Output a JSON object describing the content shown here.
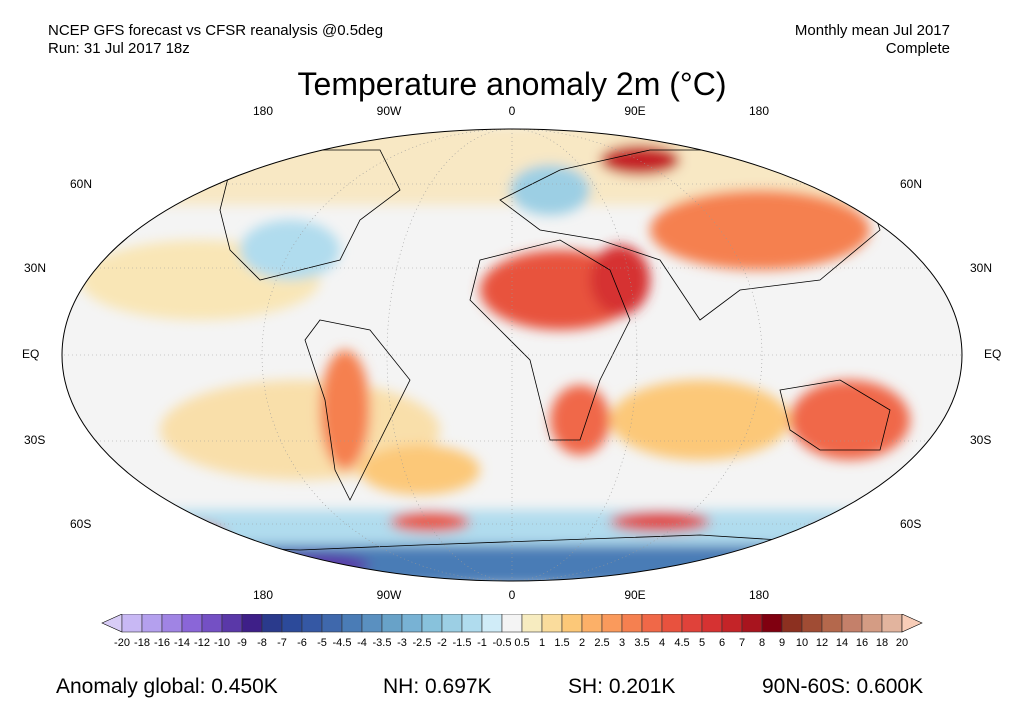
{
  "header": {
    "source": "NCEP GFS forecast vs CFSR reanalysis @0.5deg",
    "run": "Run: 31 Jul 2017 18z",
    "period": "Monthly mean Jul 2017",
    "status": "Complete"
  },
  "title": "Temperature anomaly 2m (°C)",
  "longitude_labels": [
    "180",
    "90W",
    "0",
    "90E",
    "180"
  ],
  "latitude_labels": [
    "60N",
    "30N",
    "EQ",
    "30S",
    "60S"
  ],
  "colorbar": {
    "labels": [
      "-20",
      "-18",
      "-16",
      "-14",
      "-12",
      "-10",
      "-9",
      "-8",
      "-7",
      "-6",
      "-5",
      "-4.5",
      "-4",
      "-3.5",
      "-3",
      "-2.5",
      "-2",
      "-1.5",
      "-1",
      "-0.5",
      "0.5",
      "1",
      "1.5",
      "2",
      "2.5",
      "3",
      "3.5",
      "4",
      "4.5",
      "5",
      "6",
      "7",
      "8",
      "9",
      "10",
      "12",
      "14",
      "16",
      "18",
      "20"
    ],
    "colors": [
      "#c8b8f4",
      "#b4a0ee",
      "#a084e4",
      "#8a66d8",
      "#7450c4",
      "#5a38a8",
      "#3e1f88",
      "#2a3a8c",
      "#2c4a9a",
      "#3558a4",
      "#3f68ac",
      "#4a7cb6",
      "#5a90c0",
      "#68a2c8",
      "#78b2d4",
      "#88c2dc",
      "#9ccfe4",
      "#b0dcee",
      "#d0ecf8",
      "#f4f4f4",
      "#f7ecc0",
      "#fadc9c",
      "#fcc878",
      "#fcb068",
      "#fa9a5c",
      "#f58050",
      "#f06848",
      "#e8523e",
      "#e0423a",
      "#d63232",
      "#c42428",
      "#a8141e",
      "#800010",
      "#8c3020",
      "#a04c34",
      "#b4684c",
      "#c4806a",
      "#d49c84",
      "#e2b49e"
    ],
    "low_end_color": "#d8ccf6",
    "high_end_color": "#f8cdb8"
  },
  "stats": {
    "global": "Anomaly global: 0.450K",
    "nh": "NH: 0.697K",
    "sh": "SH: 0.201K",
    "band": "90N-60S: 0.600K"
  }
}
